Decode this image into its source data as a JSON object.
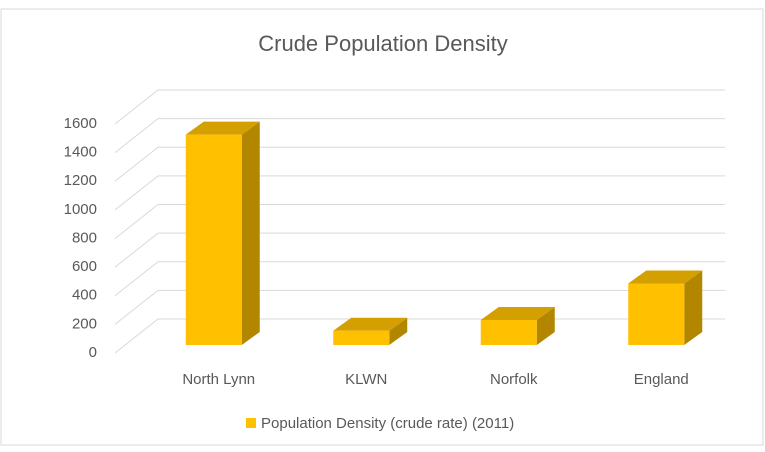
{
  "chart_data": {
    "type": "bar3d",
    "title": "Crude Population Density",
    "categories": [
      "North Lynn",
      "KLWN",
      "Norfolk",
      "England"
    ],
    "series": [
      {
        "name": "Population Density (crude rate) (2011)",
        "color": "#ffc000",
        "values": [
          1470,
          100,
          175,
          430
        ]
      }
    ],
    "ylim": [
      0,
      1600
    ],
    "yticks": [
      0,
      200,
      400,
      600,
      800,
      1000,
      1200,
      1400,
      1600
    ],
    "grid": true,
    "legend": "bottom"
  }
}
